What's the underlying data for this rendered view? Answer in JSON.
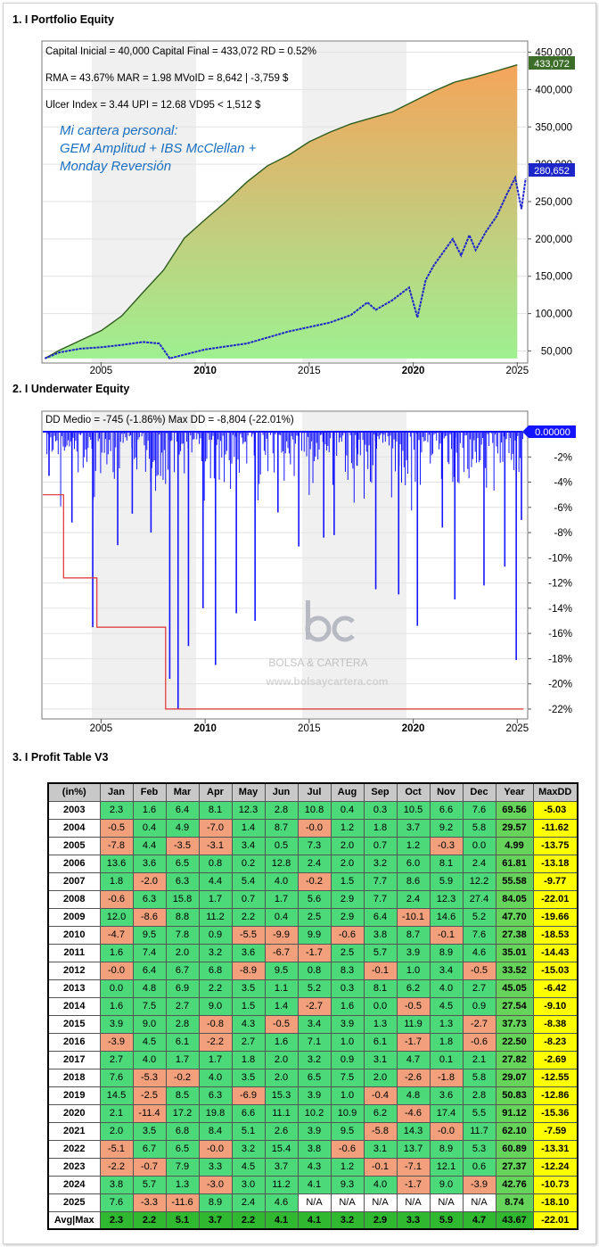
{
  "sections": {
    "s1": "1. I Portfolio Equity",
    "s2": "2. I Underwater Equity",
    "s3": "3. I Profit Table V3"
  },
  "stats": {
    "line1": "Capital Inicial = 40,000  Capital Final = 433,072  RD = 0.52%",
    "line2": "RMA = 43.67%   MAR = 1.98   MVoID = 8,642 | -3,759 $",
    "line3": "Ulcer Index = 3.44   UPI = 12.68   VD95 < 1,512 $",
    "dd_line": "DD Medio = -745 (-1.86%)      Max DD = -8,804 (-22.01%)"
  },
  "annotation": {
    "line1": "Mi cartera personal:",
    "line2": "GEM Amplitud + IBS McClellan +",
    "line3": "Monday Reversión"
  },
  "watermark": {
    "name": "BOLSA & CARTERA",
    "url": "www.bolsaycartera.com"
  },
  "colors": {
    "portfolio_line": "#2e5c1e",
    "benchmark_line": "#1d26c8",
    "underwater": "#1414ff",
    "maxdd_line": "#e03030",
    "last_label_green": "#3c6e2a",
    "last_label_blue": "#1d26c8"
  },
  "chart_data": [
    {
      "type": "area",
      "x_ticks": [
        "2005",
        "2010",
        "2015",
        "2020",
        "2025"
      ],
      "y_ticks": [
        "450,000",
        "400,000",
        "350,000",
        "300,000",
        "250,000",
        "200,000",
        "150,000",
        "100,000",
        "50,000"
      ],
      "ylim": [
        35000,
        465000
      ],
      "xlim": [
        2002.2,
        2025.5
      ],
      "last_labels": [
        "433,072",
        "280,652"
      ],
      "series": [
        {
          "kind": "portfolio",
          "points": [
            [
              2002.3,
              40000
            ],
            [
              2003.0,
              51000
            ],
            [
              2004.0,
              64000
            ],
            [
              2005.0,
              77000
            ],
            [
              2006.0,
              97000
            ],
            [
              2007.0,
              128000
            ],
            [
              2008.0,
              158000
            ],
            [
              2009.0,
              201000
            ],
            [
              2010.0,
              226000
            ],
            [
              2011.0,
              250000
            ],
            [
              2012.0,
              276000
            ],
            [
              2013.0,
              298000
            ],
            [
              2014.0,
              312000
            ],
            [
              2015.0,
              330000
            ],
            [
              2016.0,
              343000
            ],
            [
              2017.0,
              354000
            ],
            [
              2018.0,
              362000
            ],
            [
              2019.0,
              370000
            ],
            [
              2020.0,
              384000
            ],
            [
              2021.0,
              398000
            ],
            [
              2022.0,
              410000
            ],
            [
              2023.0,
              417000
            ],
            [
              2024.0,
              425000
            ],
            [
              2025.0,
              433072
            ]
          ]
        },
        {
          "kind": "benchmark",
          "points": [
            [
              2002.3,
              40000
            ],
            [
              2003.0,
              48000
            ],
            [
              2004.0,
              53000
            ],
            [
              2005.0,
              55000
            ],
            [
              2006.0,
              58000
            ],
            [
              2007.0,
              62000
            ],
            [
              2007.8,
              60000
            ],
            [
              2008.3,
              40000
            ],
            [
              2009.0,
              45000
            ],
            [
              2010.0,
              52000
            ],
            [
              2011.0,
              56000
            ],
            [
              2012.0,
              60000
            ],
            [
              2013.0,
              68000
            ],
            [
              2014.0,
              76000
            ],
            [
              2015.0,
              82000
            ],
            [
              2016.0,
              88000
            ],
            [
              2017.0,
              98000
            ],
            [
              2017.8,
              115000
            ],
            [
              2018.2,
              105000
            ],
            [
              2019.0,
              118000
            ],
            [
              2019.8,
              135000
            ],
            [
              2020.2,
              95000
            ],
            [
              2020.6,
              145000
            ],
            [
              2021.0,
              165000
            ],
            [
              2021.9,
              200000
            ],
            [
              2022.3,
              178000
            ],
            [
              2022.7,
              205000
            ],
            [
              2023.0,
              185000
            ],
            [
              2023.5,
              210000
            ],
            [
              2024.0,
              230000
            ],
            [
              2024.5,
              260000
            ],
            [
              2024.9,
              282000
            ],
            [
              2025.2,
              240000
            ],
            [
              2025.4,
              280652
            ]
          ]
        }
      ]
    },
    {
      "type": "area",
      "x_ticks": [
        "2005",
        "2010",
        "2015",
        "2020",
        "2025"
      ],
      "y_ticks": [
        "-2%",
        "-4%",
        "-6%",
        "-8%",
        "-10%",
        "-12%",
        "-14%",
        "-16%",
        "-18%",
        "-20%",
        "-22%"
      ],
      "ylim": [
        -22.5,
        0
      ],
      "last_label": "0.00000",
      "series": [
        {
          "kind": "drawdown",
          "points": [
            [
              2002.5,
              -3.5
            ],
            [
              2003.6,
              -7.2
            ],
            [
              2004.6,
              -15.5
            ],
            [
              2005.8,
              -9.0
            ],
            [
              2006.5,
              -6.5
            ],
            [
              2007.4,
              -8.0
            ],
            [
              2008.3,
              -19.6
            ],
            [
              2008.7,
              -22.0
            ],
            [
              2009.2,
              -17.0
            ],
            [
              2009.9,
              -14.0
            ],
            [
              2010.5,
              -18.5
            ],
            [
              2011.5,
              -14.4
            ],
            [
              2012.4,
              -15.0
            ],
            [
              2013.5,
              -6.4
            ],
            [
              2014.5,
              -9.1
            ],
            [
              2015.7,
              -8.4
            ],
            [
              2016.2,
              -8.2
            ],
            [
              2017.3,
              -2.7
            ],
            [
              2018.2,
              -12.5
            ],
            [
              2019.3,
              -12.9
            ],
            [
              2020.2,
              -15.4
            ],
            [
              2021.4,
              -7.6
            ],
            [
              2022.0,
              -13.3
            ],
            [
              2023.4,
              -12.2
            ],
            [
              2024.4,
              -10.7
            ],
            [
              2024.95,
              -18.1
            ],
            [
              2025.2,
              -7.0
            ]
          ]
        },
        {
          "kind": "max-dd-step",
          "points": [
            [
              2002.2,
              -5.0
            ],
            [
              2003.2,
              -5.0
            ],
            [
              2003.2,
              -11.6
            ],
            [
              2004.8,
              -11.6
            ],
            [
              2004.8,
              -15.5
            ],
            [
              2008.1,
              -15.5
            ],
            [
              2008.1,
              -22.0
            ],
            [
              2025.3,
              -22.0
            ]
          ]
        }
      ]
    },
    {
      "type": "table",
      "headers": [
        "(in%)",
        "Jan",
        "Feb",
        "Mar",
        "Apr",
        "May",
        "Jun",
        "Jul",
        "Aug",
        "Sep",
        "Oct",
        "Nov",
        "Dec",
        "Year",
        "MaxDD"
      ],
      "rows": [
        [
          "2003",
          "2.3",
          "1.6",
          "6.4",
          "8.1",
          "12.3",
          "2.8",
          "10.8",
          "0.4",
          "0.3",
          "10.5",
          "6.6",
          "7.6",
          "69.56",
          "-5.03"
        ],
        [
          "2004",
          "-0.5",
          "0.4",
          "4.9",
          "-7.0",
          "1.4",
          "8.7",
          "-0.0",
          "1.2",
          "1.8",
          "3.7",
          "9.2",
          "5.8",
          "29.57",
          "-11.62"
        ],
        [
          "2005",
          "-7.8",
          "4.4",
          "-3.5",
          "-3.1",
          "3.4",
          "0.5",
          "7.3",
          "2.0",
          "0.7",
          "1.2",
          "-0.3",
          "0.0",
          "4.99",
          "-13.75"
        ],
        [
          "2006",
          "13.6",
          "3.6",
          "6.5",
          "0.8",
          "0.2",
          "12.8",
          "2.4",
          "2.0",
          "3.2",
          "6.0",
          "8.1",
          "2.4",
          "61.81",
          "-13.18"
        ],
        [
          "2007",
          "1.8",
          "-2.0",
          "6.3",
          "4.4",
          "5.4",
          "4.0",
          "-0.2",
          "1.5",
          "7.7",
          "8.6",
          "5.9",
          "12.2",
          "55.58",
          "-9.77"
        ],
        [
          "2008",
          "-0.6",
          "6.3",
          "15.8",
          "1.7",
          "0.7",
          "1.7",
          "5.6",
          "2.9",
          "7.7",
          "2.4",
          "12.3",
          "27.4",
          "84.05",
          "-22.01"
        ],
        [
          "2009",
          "12.0",
          "-8.6",
          "8.8",
          "11.2",
          "2.2",
          "0.4",
          "2.5",
          "2.9",
          "6.4",
          "-10.1",
          "14.6",
          "5.2",
          "47.70",
          "-19.66"
        ],
        [
          "2010",
          "-4.7",
          "9.5",
          "7.8",
          "0.9",
          "-5.5",
          "-9.9",
          "9.9",
          "-0.6",
          "3.8",
          "8.7",
          "-0.1",
          "7.6",
          "27.38",
          "-18.53"
        ],
        [
          "2011",
          "1.6",
          "7.4",
          "2.0",
          "3.2",
          "3.6",
          "-6.7",
          "-1.7",
          "2.5",
          "5.7",
          "3.9",
          "8.9",
          "4.6",
          "35.01",
          "-14.43"
        ],
        [
          "2012",
          "-0.0",
          "6.4",
          "6.7",
          "6.8",
          "-8.9",
          "9.5",
          "0.8",
          "8.3",
          "-0.1",
          "1.0",
          "3.4",
          "-0.5",
          "33.52",
          "-15.03"
        ],
        [
          "2013",
          "0.0",
          "4.8",
          "6.9",
          "2.2",
          "3.5",
          "1.1",
          "5.2",
          "0.3",
          "8.1",
          "6.2",
          "4.0",
          "2.7",
          "45.05",
          "-6.42"
        ],
        [
          "2014",
          "1.6",
          "7.5",
          "2.7",
          "9.0",
          "1.5",
          "1.4",
          "-2.7",
          "1.6",
          "0.0",
          "-0.5",
          "4.5",
          "0.9",
          "27.54",
          "-9.10"
        ],
        [
          "2015",
          "3.9",
          "9.0",
          "2.8",
          "-0.8",
          "4.3",
          "-0.5",
          "3.4",
          "3.9",
          "1.3",
          "11.9",
          "1.3",
          "-2.7",
          "37.73",
          "-8.38"
        ],
        [
          "2016",
          "-3.9",
          "4.5",
          "6.1",
          "-2.2",
          "2.7",
          "1.6",
          "7.1",
          "1.0",
          "6.1",
          "-1.7",
          "1.8",
          "-0.6",
          "22.50",
          "-8.23"
        ],
        [
          "2017",
          "2.7",
          "4.0",
          "1.7",
          "1.7",
          "1.8",
          "2.0",
          "3.2",
          "0.9",
          "3.1",
          "4.7",
          "0.1",
          "2.1",
          "27.82",
          "-2.69"
        ],
        [
          "2018",
          "7.6",
          "-5.3",
          "-0.2",
          "4.0",
          "3.5",
          "2.0",
          "6.5",
          "7.5",
          "2.0",
          "-2.6",
          "-1.8",
          "5.8",
          "29.07",
          "-12.55"
        ],
        [
          "2019",
          "14.5",
          "-2.5",
          "8.5",
          "6.3",
          "-6.9",
          "15.3",
          "3.9",
          "1.0",
          "-0.4",
          "4.8",
          "3.6",
          "2.8",
          "50.83",
          "-12.86"
        ],
        [
          "2020",
          "2.1",
          "-11.4",
          "17.2",
          "19.8",
          "6.6",
          "11.1",
          "10.2",
          "10.9",
          "6.2",
          "-4.6",
          "17.4",
          "5.5",
          "91.12",
          "-15.36"
        ],
        [
          "2021",
          "2.0",
          "3.5",
          "6.8",
          "8.4",
          "5.1",
          "2.6",
          "3.9",
          "9.5",
          "-5.8",
          "14.3",
          "-0.0",
          "11.7",
          "62.10",
          "-7.59"
        ],
        [
          "2022",
          "-5.1",
          "6.7",
          "6.5",
          "-0.0",
          "3.2",
          "15.4",
          "3.8",
          "-0.6",
          "3.1",
          "13.7",
          "8.9",
          "5.3",
          "60.89",
          "-13.31"
        ],
        [
          "2023",
          "-2.2",
          "-0.7",
          "7.9",
          "3.3",
          "4.5",
          "3.7",
          "4.3",
          "1.2",
          "-0.1",
          "-7.1",
          "12.1",
          "0.6",
          "27.37",
          "-12.24"
        ],
        [
          "2024",
          "3.8",
          "5.7",
          "1.3",
          "-3.0",
          "3.0",
          "11.2",
          "4.1",
          "9.3",
          "4.0",
          "-1.7",
          "9.0",
          "-3.9",
          "42.76",
          "-10.73"
        ],
        [
          "2025",
          "7.6",
          "-3.3",
          "-11.6",
          "8.9",
          "2.4",
          "4.6",
          "N/A",
          "N/A",
          "N/A",
          "N/A",
          "N/A",
          "N/A",
          "8.74",
          "-18.10"
        ],
        [
          "Avg|Max",
          "2.3",
          "2.2",
          "5.1",
          "3.7",
          "2.2",
          "4.1",
          "4.1",
          "3.2",
          "2.9",
          "3.3",
          "5.9",
          "4.7",
          "43.67",
          "-22.01"
        ]
      ]
    }
  ]
}
